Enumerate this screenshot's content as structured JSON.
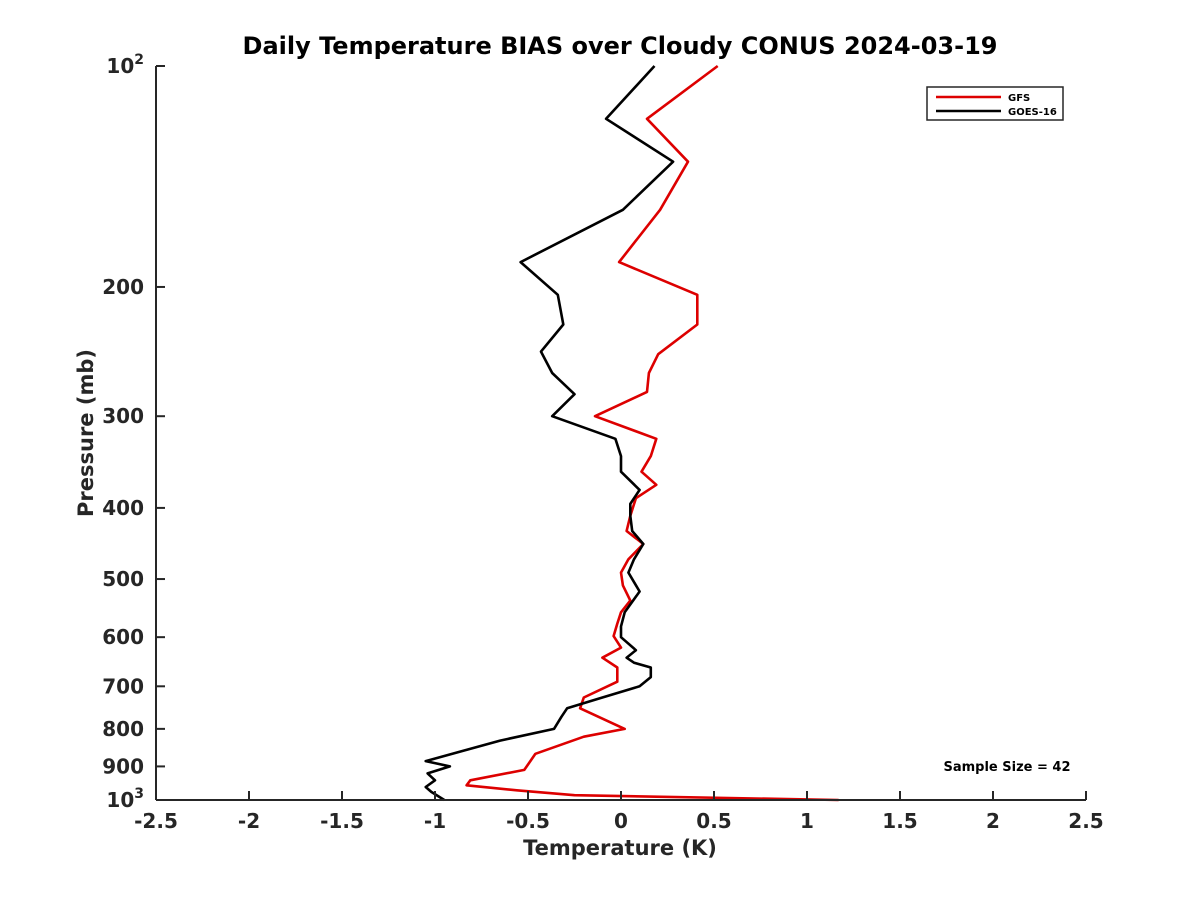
{
  "chart_data": {
    "type": "line",
    "title": "Daily Temperature BIAS over Cloudy CONUS 2024-03-19",
    "xlabel": "Temperature (K)",
    "ylabel": "Pressure (mb)",
    "xlim": [
      -2.5,
      2.5
    ],
    "ylim": [
      100,
      1000
    ],
    "y_scale": "log",
    "y_direction": "reversed",
    "xticks": [
      -2.5,
      -2,
      -1.5,
      -1,
      -0.5,
      0,
      0.5,
      1,
      1.5,
      2,
      2.5
    ],
    "xtick_labels": [
      "-2.5",
      "-2",
      "-1.5",
      "-1",
      "-0.5",
      "0",
      "0.5",
      "1",
      "1.5",
      "2",
      "2.5"
    ],
    "yticks": [
      {
        "value": 100,
        "base": "10",
        "exp": "2"
      },
      {
        "value": 200,
        "base": "200",
        "exp": ""
      },
      {
        "value": 300,
        "base": "300",
        "exp": ""
      },
      {
        "value": 400,
        "base": "400",
        "exp": ""
      },
      {
        "value": 500,
        "base": "500",
        "exp": ""
      },
      {
        "value": 600,
        "base": "600",
        "exp": ""
      },
      {
        "value": 700,
        "base": "700",
        "exp": ""
      },
      {
        "value": 800,
        "base": "800",
        "exp": ""
      },
      {
        "value": 900,
        "base": "900",
        "exp": ""
      },
      {
        "value": 1000,
        "base": "10",
        "exp": "3"
      }
    ],
    "grid": false,
    "legend_position": "top-right",
    "annotation": "Sample Size = 42",
    "series": [
      {
        "name": "GFS",
        "color": "#dd0000",
        "points": [
          [
            0.52,
            100
          ],
          [
            0.14,
            118
          ],
          [
            0.36,
            135
          ],
          [
            0.21,
            157
          ],
          [
            -0.01,
            185
          ],
          [
            0.41,
            205
          ],
          [
            0.41,
            225
          ],
          [
            0.2,
            247
          ],
          [
            0.15,
            262
          ],
          [
            0.14,
            278
          ],
          [
            -0.14,
            300
          ],
          [
            0.19,
            322
          ],
          [
            0.16,
            340
          ],
          [
            0.11,
            357
          ],
          [
            0.19,
            372
          ],
          [
            0.08,
            388
          ],
          [
            0.05,
            410
          ],
          [
            0.03,
            430
          ],
          [
            0.12,
            448
          ],
          [
            0.04,
            470
          ],
          [
            0.0,
            490
          ],
          [
            0.01,
            510
          ],
          [
            0.05,
            535
          ],
          [
            0.0,
            555
          ],
          [
            -0.02,
            575
          ],
          [
            -0.04,
            598
          ],
          [
            0.0,
            620
          ],
          [
            -0.1,
            640
          ],
          [
            -0.02,
            660
          ],
          [
            -0.02,
            690
          ],
          [
            -0.2,
            725
          ],
          [
            -0.22,
            750
          ],
          [
            0.02,
            800
          ],
          [
            -0.2,
            820
          ],
          [
            -0.46,
            865
          ],
          [
            -0.52,
            910
          ],
          [
            -0.81,
            940
          ],
          [
            -0.83,
            955
          ],
          [
            -0.56,
            970
          ],
          [
            -0.25,
            985
          ],
          [
            1.17,
            1000
          ]
        ]
      },
      {
        "name": "GOES-16",
        "color": "#000000",
        "points": [
          [
            0.18,
            100
          ],
          [
            -0.08,
            118
          ],
          [
            0.28,
            135
          ],
          [
            0.01,
            157
          ],
          [
            -0.54,
            185
          ],
          [
            -0.34,
            205
          ],
          [
            -0.31,
            225
          ],
          [
            -0.43,
            245
          ],
          [
            -0.37,
            262
          ],
          [
            -0.25,
            280
          ],
          [
            -0.37,
            300
          ],
          [
            -0.03,
            322
          ],
          [
            0.0,
            340
          ],
          [
            0.0,
            357
          ],
          [
            0.1,
            378
          ],
          [
            0.05,
            395
          ],
          [
            0.05,
            410
          ],
          [
            0.06,
            430
          ],
          [
            0.12,
            448
          ],
          [
            0.07,
            470
          ],
          [
            0.04,
            490
          ],
          [
            0.1,
            520
          ],
          [
            0.02,
            555
          ],
          [
            0.0,
            580
          ],
          [
            0.0,
            600
          ],
          [
            0.08,
            625
          ],
          [
            0.03,
            640
          ],
          [
            0.07,
            650
          ],
          [
            0.16,
            660
          ],
          [
            0.16,
            680
          ],
          [
            0.1,
            700
          ],
          [
            -0.1,
            725
          ],
          [
            -0.29,
            750
          ],
          [
            -0.32,
            770
          ],
          [
            -0.36,
            800
          ],
          [
            -0.65,
            830
          ],
          [
            -0.87,
            860
          ],
          [
            -1.05,
            885
          ],
          [
            -0.92,
            900
          ],
          [
            -1.04,
            920
          ],
          [
            -1.0,
            940
          ],
          [
            -1.05,
            960
          ],
          [
            -1.02,
            975
          ],
          [
            -0.95,
            1000
          ]
        ]
      }
    ]
  }
}
